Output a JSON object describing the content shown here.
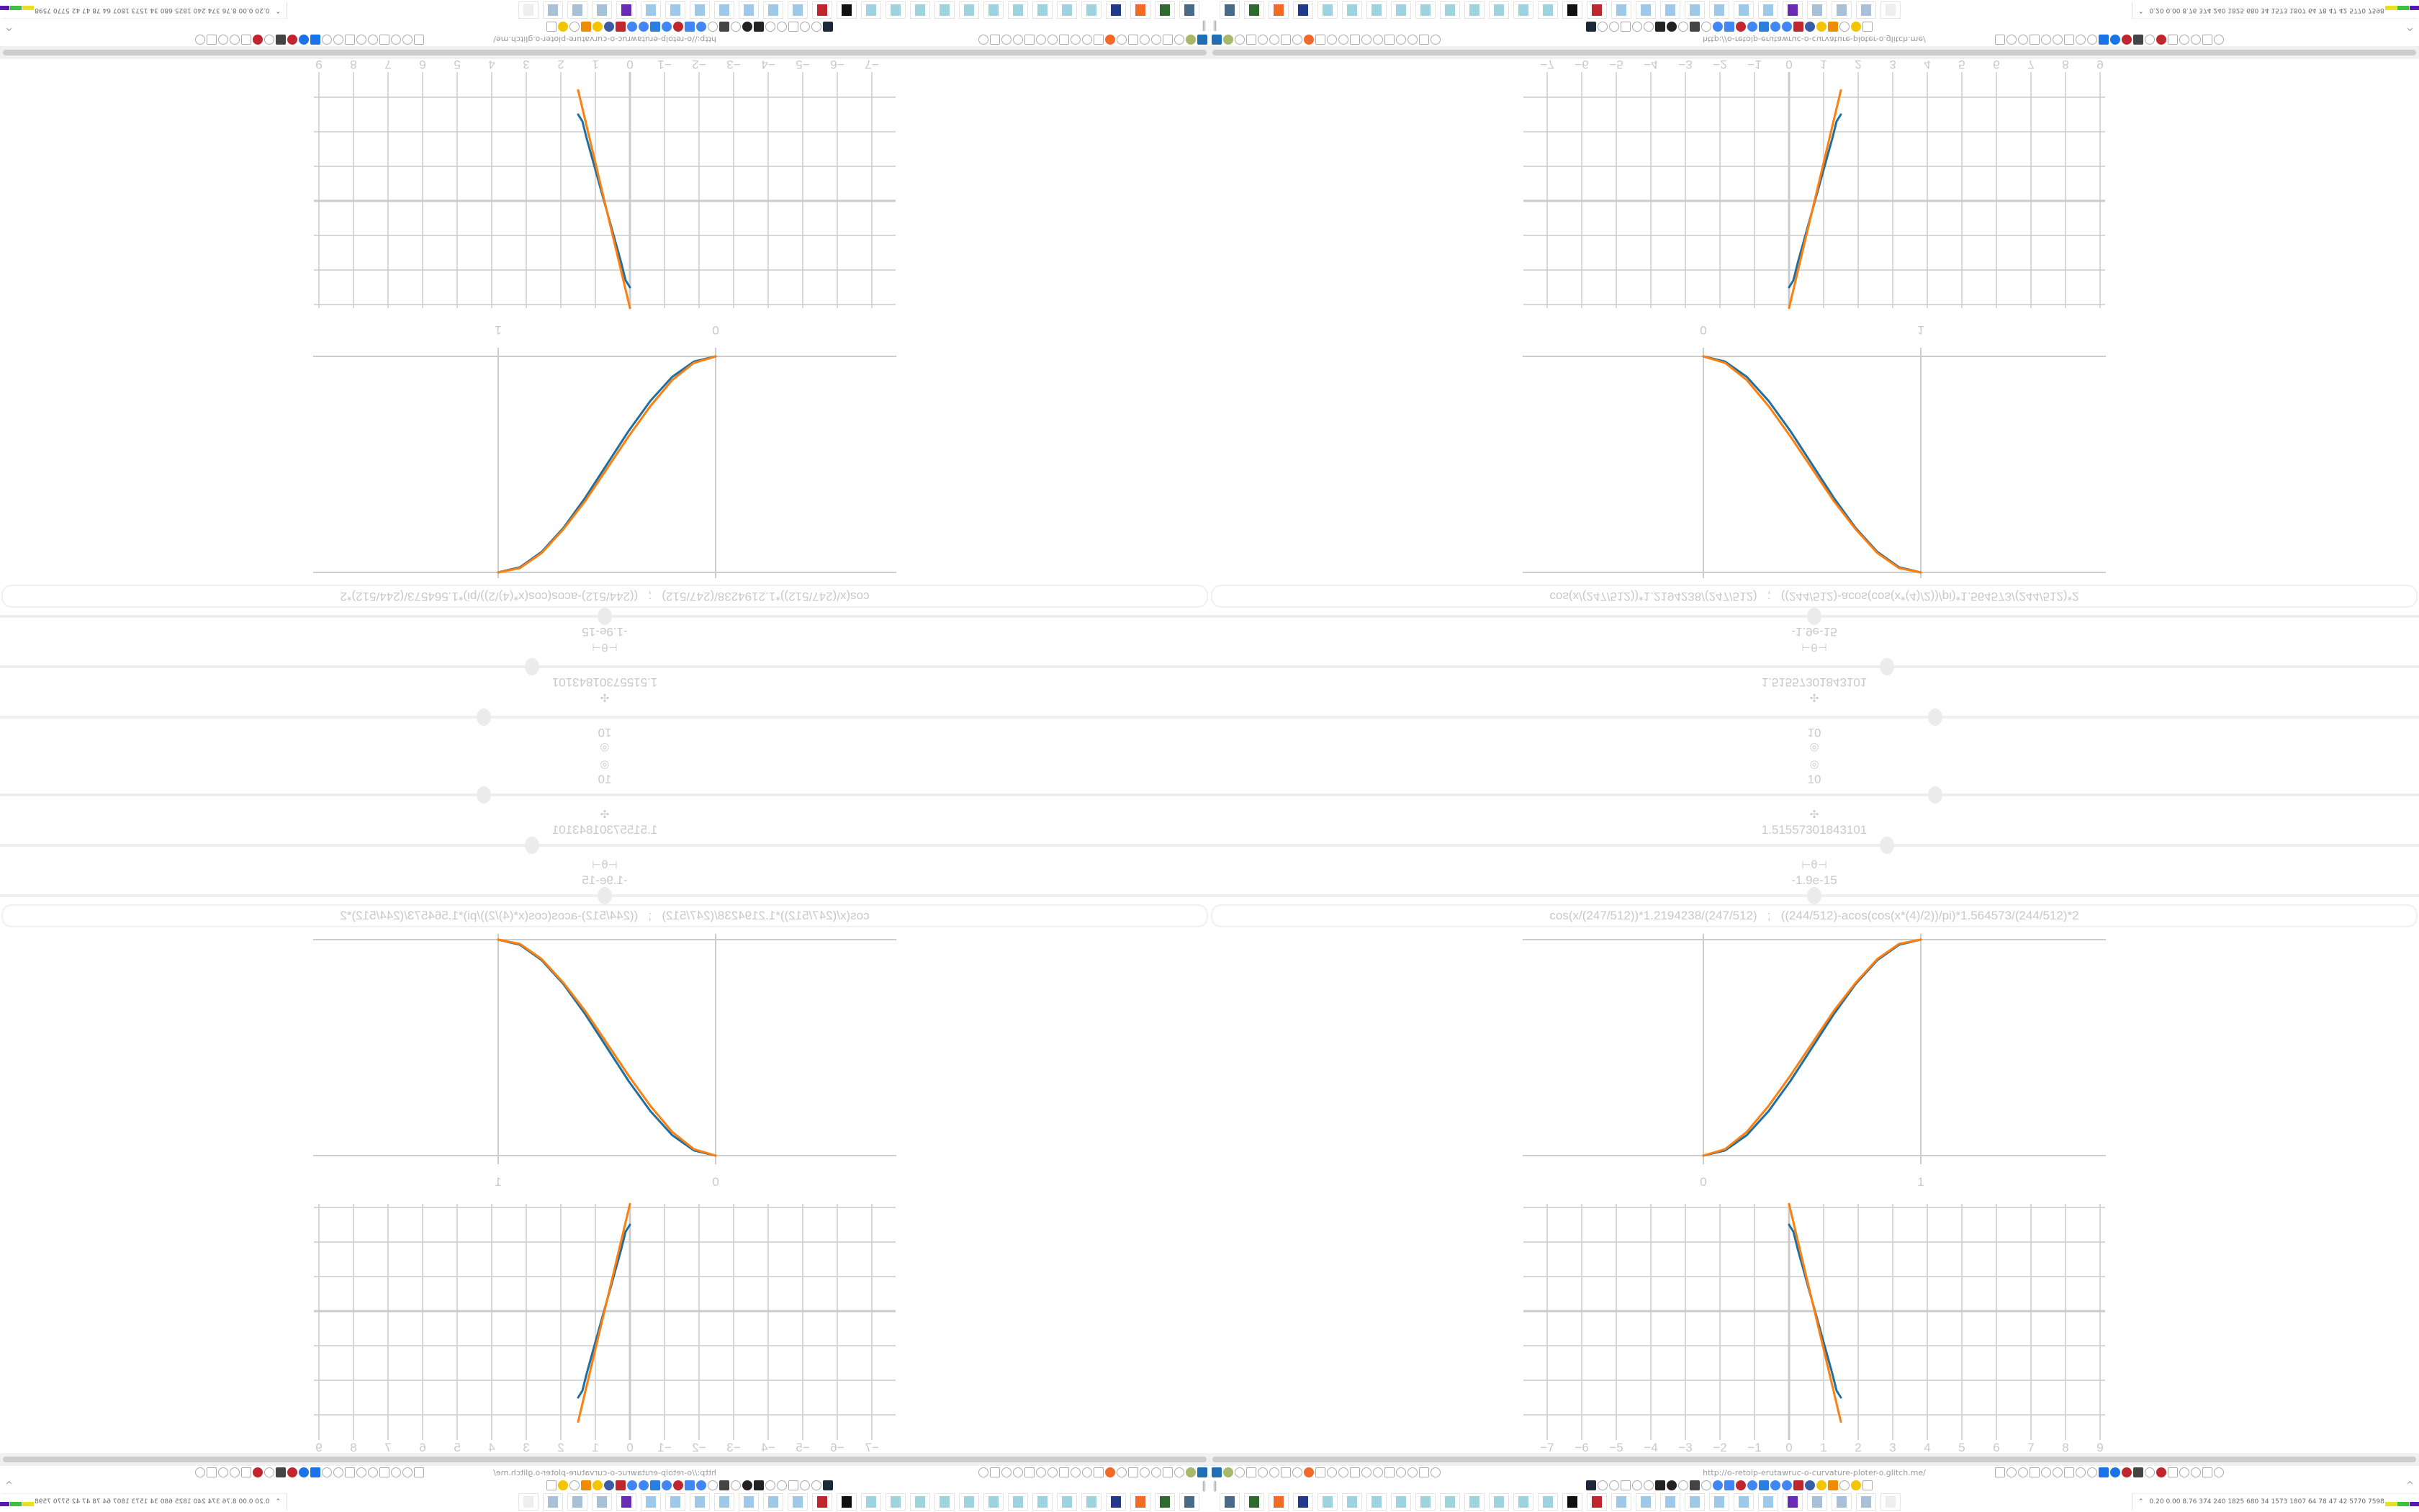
{
  "controls": {
    "sliders": [
      {
        "icon": "target-icon",
        "glyph": "◎",
        "value": "10",
        "fraction": 0.6
      },
      {
        "icon": "move-icon",
        "glyph": "✣",
        "value": "1.51557301843101",
        "fraction": 0.56
      },
      {
        "icon": "theta-icon",
        "glyph": "⊢θ⊣",
        "value": "-1.9e-15",
        "fraction": 0.5
      }
    ]
  },
  "expression": "cos(x/(247/512))*1.2194238/(247/512)   ;   ((244/512)-acos(cos(x*(4)/2))/pi)*1.564573/(244/512)*2",
  "colors": {
    "series_blue": "#1f6fa0",
    "series_orange": "#ff7f0e",
    "grid": "#cccccc",
    "text": "#c8c8c8"
  },
  "chart_data": [
    {
      "type": "line",
      "xlim": [
        0,
        1
      ],
      "ylim": [
        0,
        1
      ],
      "xticks": [
        "0",
        "1"
      ],
      "grid": true,
      "series": [
        {
          "color": "#1f6fa0",
          "x": [
            0,
            0.1,
            0.2,
            0.3,
            0.4,
            0.5,
            0.6,
            0.7,
            0.8,
            0.9,
            1
          ],
          "y": [
            0,
            0.024,
            0.095,
            0.206,
            0.345,
            0.5,
            0.655,
            0.794,
            0.905,
            0.976,
            1
          ]
        },
        {
          "color": "#ff7f0e",
          "x": [
            0,
            0.1,
            0.2,
            0.3,
            0.4,
            0.5,
            0.6,
            0.7,
            0.8,
            0.9,
            1
          ],
          "y": [
            0,
            0.03,
            0.11,
            0.23,
            0.37,
            0.52,
            0.67,
            0.8,
            0.91,
            0.98,
            1
          ]
        }
      ]
    },
    {
      "type": "line",
      "xlim": [
        -7.4,
        9.2
      ],
      "ylim": [
        -3.3,
        3.3
      ],
      "xticks": [
        "−7",
        "−6",
        "−5",
        "−4",
        "−3",
        "−2",
        "−1",
        "0",
        "1",
        "2",
        "3",
        "4",
        "5",
        "6",
        "7",
        "8",
        "9"
      ],
      "grid": true,
      "series": [
        {
          "color": "#1f6fa0",
          "x": [
            0,
            0.125,
            0.25,
            0.5,
            0.75,
            1,
            1.25,
            1.375,
            1.5
          ],
          "y": [
            2.5,
            2.3,
            1.8,
            0.9,
            0,
            -0.9,
            -1.8,
            -2.3,
            -2.5
          ]
        },
        {
          "color": "#ff7f0e",
          "x": [
            0,
            1.5
          ],
          "y": [
            3.1,
            -3.2
          ]
        }
      ]
    }
  ],
  "browser": {
    "url": "http://o-retolp-erutawruc-o-curvature-ploter-o.glitch.me/",
    "toolbar_left_icons": [
      "filter-icon",
      "green-circle-icon",
      "globe-icon",
      "globe-icon",
      "headphones-icon",
      "headphones-icon",
      "globe-icon",
      "wrench-icon",
      "firefox-icon",
      "gear-icon",
      "globe-icon",
      "dot-icon",
      "square-icon",
      "dot-icon",
      "square-icon",
      "dot-icon",
      "folder-icon",
      "back-icon",
      "shield-icon",
      "lock-icon"
    ],
    "toolbar_right_icons": [
      "translate-icon",
      "star-icon",
      "forward-icon",
      "reload-icon",
      "download-icon",
      "pen-icon",
      "extension-icon",
      "circle-icon",
      "gear-icon",
      "plus-icon",
      "info-icon",
      "red-icon",
      "trash-icon",
      "arrow-icon",
      "red-icon",
      "globe-icon",
      "gear-icon",
      "export-icon",
      "wrench-icon",
      "gear-icon"
    ],
    "bookmark_icons": [
      "steam-icon",
      "cc-icon",
      "speaker-icon",
      "speaker-icon",
      "globe-icon",
      "bookmark-icon",
      "wikipedia-icon",
      "chart-icon",
      "bookmark-icon",
      "trash-icon",
      "bookmark-icon",
      "google-icon",
      "google-icon",
      "red-gear-icon",
      "google-icon",
      "blue-icon",
      "google-icon",
      "google-icon",
      "red-icon",
      "grid-icon",
      "yellow-icon",
      "orange-icon",
      "cc-icon",
      "yellow-icon",
      "hourglass-icon"
    ]
  },
  "taskbar": {
    "apps": [
      "monitor-icon",
      "terminal-icon",
      "firefox-icon",
      "floppy-icon",
      "notepad-icon",
      "notepad-icon",
      "notepad-icon",
      "notepad-icon",
      "notepad-icon",
      "notepad-icon",
      "notepad-icon",
      "notepad-icon",
      "notepad-icon",
      "notepad-icon",
      "inkscape-icon",
      "red-app-icon",
      "calculator-icon",
      "calculator-icon",
      "calculator-icon",
      "calculator-icon",
      "calculator-icon",
      "calculator-icon",
      "calculator-icon",
      "purple-app-icon",
      "document-icon",
      "document-icon",
      "document-icon",
      "blank-icon"
    ],
    "tray_text": "0.20 0.00 8.76 374 240 1825 680 34 1573 1807 64 78 47 42 5770 7598"
  }
}
